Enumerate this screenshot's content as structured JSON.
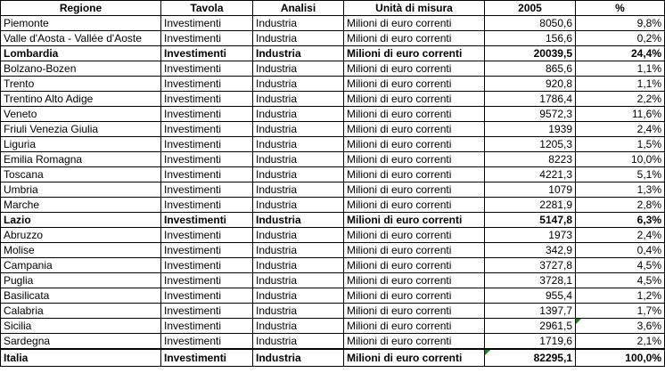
{
  "headers": [
    "Regione",
    "Tavola",
    "Analisi",
    "Unità di misura",
    "2005",
    "%"
  ],
  "rows": [
    {
      "regione": "Piemonte",
      "tavola": "Investimenti",
      "analisi": "Industria",
      "unita": "Milioni di euro correnti",
      "valore": "8050,6",
      "pct": "9,8%",
      "bold": false
    },
    {
      "regione": "Valle d'Aosta - Vallée d'Aoste",
      "tavola": "Investimenti",
      "analisi": "Industria",
      "unita": "Milioni di euro correnti",
      "valore": "156,6",
      "pct": "0,2%",
      "bold": false
    },
    {
      "regione": "Lombardia",
      "tavola": "Investimenti",
      "analisi": "Industria",
      "unita": "Milioni di euro correnti",
      "valore": "20039,5",
      "pct": "24,4%",
      "bold": true
    },
    {
      "regione": "Bolzano-Bozen",
      "tavola": "Investimenti",
      "analisi": "Industria",
      "unita": "Milioni di euro correnti",
      "valore": "865,6",
      "pct": "1,1%",
      "bold": false
    },
    {
      "regione": "Trento",
      "tavola": "Investimenti",
      "analisi": "Industria",
      "unita": "Milioni di euro correnti",
      "valore": "920,8",
      "pct": "1,1%",
      "bold": false
    },
    {
      "regione": "Trentino Alto Adige",
      "tavola": "Investimenti",
      "analisi": "Industria",
      "unita": "Milioni di euro correnti",
      "valore": "1786,4",
      "pct": "2,2%",
      "bold": false
    },
    {
      "regione": "Veneto",
      "tavola": "Investimenti",
      "analisi": "Industria",
      "unita": "Milioni di euro correnti",
      "valore": "9572,3",
      "pct": "11,6%",
      "bold": false
    },
    {
      "regione": "Friuli Venezia Giulia",
      "tavola": "Investimenti",
      "analisi": "Industria",
      "unita": "Milioni di euro correnti",
      "valore": "1939",
      "pct": "2,4%",
      "bold": false
    },
    {
      "regione": "Liguria",
      "tavola": "Investimenti",
      "analisi": "Industria",
      "unita": "Milioni di euro correnti",
      "valore": "1205,3",
      "pct": "1,5%",
      "bold": false
    },
    {
      "regione": "Emilia Romagna",
      "tavola": "Investimenti",
      "analisi": "Industria",
      "unita": "Milioni di euro correnti",
      "valore": "8223",
      "pct": "10,0%",
      "bold": false
    },
    {
      "regione": "Toscana",
      "tavola": "Investimenti",
      "analisi": "Industria",
      "unita": "Milioni di euro correnti",
      "valore": "4221,3",
      "pct": "5,1%",
      "bold": false
    },
    {
      "regione": "Umbria",
      "tavola": "Investimenti",
      "analisi": "Industria",
      "unita": "Milioni di euro correnti",
      "valore": "1079",
      "pct": "1,3%",
      "bold": false
    },
    {
      "regione": "Marche",
      "tavola": "Investimenti",
      "analisi": "Industria",
      "unita": "Milioni di euro correnti",
      "valore": "2281,9",
      "pct": "2,8%",
      "bold": false
    },
    {
      "regione": "Lazio",
      "tavola": "Investimenti",
      "analisi": "Industria",
      "unita": "Milioni di euro correnti",
      "valore": "5147,8",
      "pct": "6,3%",
      "bold": true
    },
    {
      "regione": "Abruzzo",
      "tavola": "Investimenti",
      "analisi": "Industria",
      "unita": "Milioni di euro correnti",
      "valore": "1973",
      "pct": "2,4%",
      "bold": false
    },
    {
      "regione": "Molise",
      "tavola": "Investimenti",
      "analisi": "Industria",
      "unita": "Milioni di euro correnti",
      "valore": "342,9",
      "pct": "0,4%",
      "bold": false
    },
    {
      "regione": "Campania",
      "tavola": "Investimenti",
      "analisi": "Industria",
      "unita": "Milioni di euro correnti",
      "valore": "3727,8",
      "pct": "4,5%",
      "bold": false
    },
    {
      "regione": "Puglia",
      "tavola": "Investimenti",
      "analisi": "Industria",
      "unita": "Milioni di euro correnti",
      "valore": "3728,1",
      "pct": "4,5%",
      "bold": false
    },
    {
      "regione": "Basilicata",
      "tavola": "Investimenti",
      "analisi": "Industria",
      "unita": "Milioni di euro correnti",
      "valore": "955,4",
      "pct": "1,2%",
      "bold": false
    },
    {
      "regione": "Calabria",
      "tavola": "Investimenti",
      "analisi": "Industria",
      "unita": "Milioni di euro correnti",
      "valore": "1397,7",
      "pct": "1,7%",
      "bold": false
    },
    {
      "regione": "Sicilia",
      "tavola": "Investimenti",
      "analisi": "Industria",
      "unita": "Milioni di euro correnti",
      "valore": "2961,5",
      "pct": "3,6%",
      "bold": false,
      "marked_pct": true
    },
    {
      "regione": "Sardegna",
      "tavola": "Investimenti",
      "analisi": "Industria",
      "unita": "Milioni di euro correnti",
      "valore": "1719,6",
      "pct": "2,1%",
      "bold": false
    }
  ],
  "total": {
    "regione": "Italia",
    "tavola": "Investimenti",
    "analisi": "Industria",
    "unita": "Milioni di euro correnti",
    "valore": "82295,1",
    "pct": "100,0%",
    "marked_value": true
  },
  "colors": {
    "marker": "#1e7b1e",
    "border": "#000000",
    "background": "#ffffff"
  }
}
